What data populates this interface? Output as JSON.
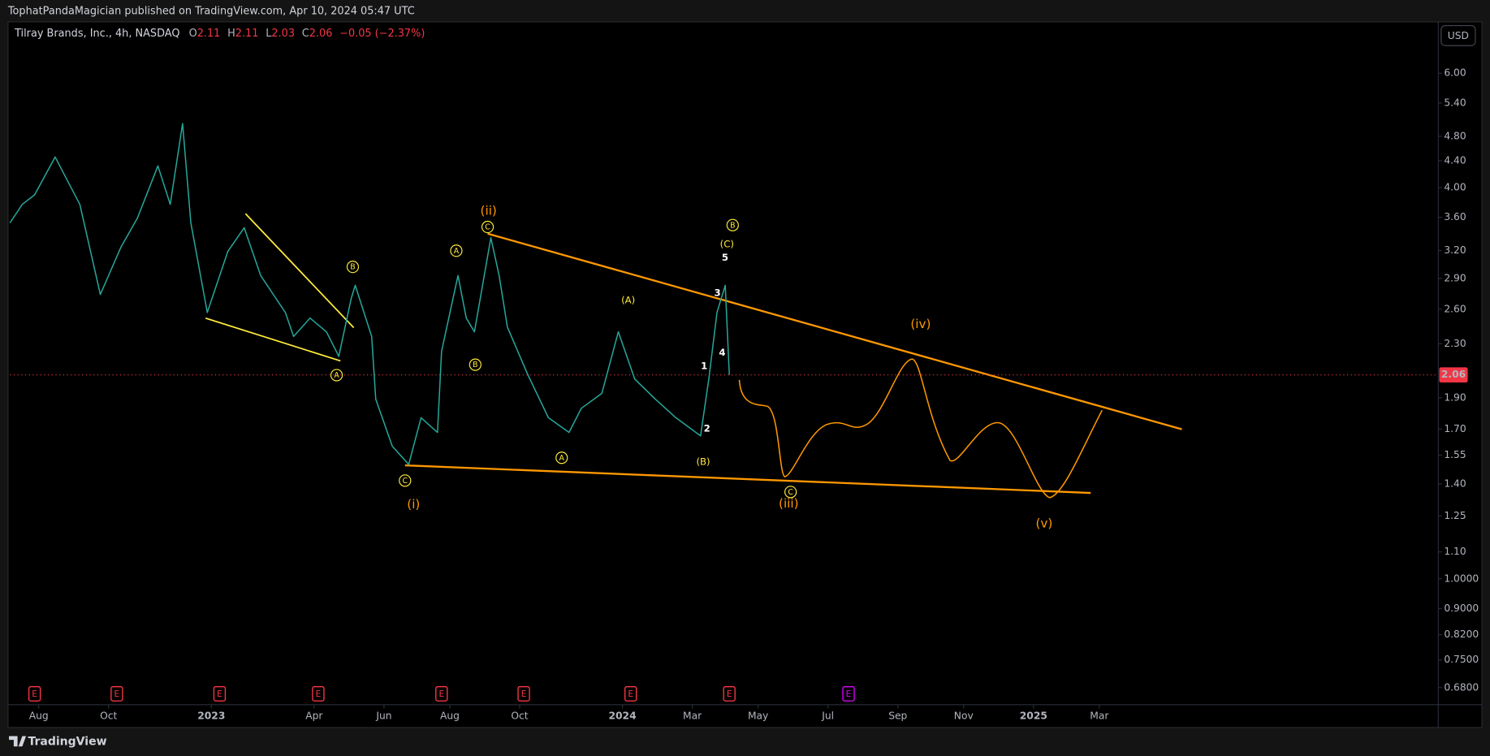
{
  "header": {
    "publisher": "TophatPandaMagician published on TradingView.com, Apr 10, 2024 05:47 UTC",
    "currency": "USD",
    "brand": "TradingView"
  },
  "chart_data": {
    "type": "line",
    "title": "Tilray Brands, Inc., 4h, NASDAQ",
    "ohlc": [
      {
        "label": "O",
        "value": 2.11
      },
      {
        "label": "H",
        "value": 2.11
      },
      {
        "label": "L",
        "value": 2.03
      },
      {
        "label": "C",
        "value": 2.06
      }
    ],
    "change": "−0.05 (−2.37%)",
    "x": [
      2022.51,
      2022.54,
      2022.57,
      2022.62,
      2022.65,
      2022.68,
      2022.73,
      2022.78,
      2022.82,
      2022.87,
      2022.9,
      2022.93,
      2022.95,
      2022.99,
      2023.04,
      2023.08,
      2023.12,
      2023.18,
      2023.2,
      2023.24,
      2023.28,
      2023.31,
      2023.34,
      2023.35,
      2023.39,
      2023.4,
      2023.44,
      2023.48,
      2023.51,
      2023.55,
      2023.56,
      2023.6,
      2023.62,
      2023.64,
      2023.68,
      2023.7,
      2023.72,
      2023.77,
      2023.82,
      2023.87,
      2023.9,
      2023.95,
      2023.99,
      2024.03,
      2024.08,
      2024.13,
      2024.19,
      2024.21,
      2024.23,
      2024.25,
      2024.26
    ],
    "values": [
      3.53,
      3.77,
      3.9,
      4.46,
      4.1,
      3.77,
      2.74,
      3.24,
      3.59,
      4.32,
      3.77,
      5.02,
      3.53,
      2.57,
      3.19,
      3.47,
      2.93,
      2.57,
      2.36,
      2.52,
      2.4,
      2.2,
      2.7,
      2.83,
      2.36,
      1.89,
      1.6,
      1.5,
      1.77,
      1.68,
      2.24,
      2.93,
      2.52,
      2.4,
      3.35,
      2.93,
      2.44,
      2.06,
      1.77,
      1.68,
      1.83,
      1.93,
      2.4,
      2.03,
      1.89,
      1.77,
      1.66,
      2.03,
      2.57,
      2.83,
      2.06
    ],
    "color": "#26a69a",
    "xlim": [
      2022.51,
      2025.98
    ],
    "xticks": [
      {
        "value": 2022.58,
        "label": "Aug"
      },
      {
        "value": 2022.75,
        "label": "Oct"
      },
      2023,
      {
        "value": 2023.25,
        "label": "Apr"
      },
      {
        "value": 2023.42,
        "label": "Jun"
      },
      {
        "value": 2023.58,
        "label": "Aug"
      },
      {
        "value": 2023.75,
        "label": "Oct"
      },
      2024,
      {
        "value": 2024.17,
        "label": "Mar"
      },
      {
        "value": 2024.33,
        "label": "May"
      },
      {
        "value": 2024.5,
        "label": "Jul"
      },
      {
        "value": 2024.67,
        "label": "Sep"
      },
      {
        "value": 2024.83,
        "label": "Nov"
      },
      2025,
      {
        "value": 2025.16,
        "label": "Mar"
      }
    ],
    "ylim": [
      0.64,
      7.2
    ],
    "log_scale": true,
    "yticks": [
      {
        "value": 6,
        "label": "6.00"
      },
      {
        "value": 5.4,
        "label": "5.40"
      },
      {
        "value": 4.8,
        "label": "4.80"
      },
      {
        "value": 4.4,
        "label": "4.40"
      },
      {
        "value": 4,
        "label": "4.00"
      },
      {
        "value": 3.6,
        "label": "3.60"
      },
      {
        "value": 3.2,
        "label": "3.20"
      },
      {
        "value": 2.9,
        "label": "2.90"
      },
      {
        "value": 2.6,
        "label": "2.60"
      },
      {
        "value": 2.3,
        "label": "2.30"
      },
      {
        "value": 1.9,
        "label": "1.90"
      },
      {
        "value": 1.7,
        "label": "1.70"
      },
      1.55,
      {
        "value": 1.4,
        "label": "1.40"
      },
      1.25,
      {
        "value": 1.1,
        "label": "1.10"
      },
      {
        "value": 1,
        "label": "1.0000"
      },
      {
        "value": 0.9,
        "label": "0.9000"
      },
      {
        "value": 0.82,
        "label": "0.8200"
      },
      {
        "value": 0.75,
        "label": "0.7500"
      },
      {
        "value": 0.68,
        "label": "0.6800"
      }
    ],
    "grid": false,
    "events": [
      {
        "label": "E",
        "x": 2022.57,
        "color": "#f23645"
      },
      {
        "label": "E",
        "x": 2022.77,
        "color": "#f23645"
      },
      {
        "label": "E",
        "x": 2023.02,
        "color": "#f23645"
      },
      {
        "label": "E",
        "x": 2023.26,
        "color": "#f23645"
      },
      {
        "label": "E",
        "x": 2023.56,
        "color": "#f23645"
      },
      {
        "label": "E",
        "x": 2023.76,
        "color": "#f23645"
      },
      {
        "label": "E",
        "x": 2024.02,
        "color": "#f23645"
      },
      {
        "label": "E",
        "x": 2024.26,
        "color": "#f23645"
      },
      {
        "label": "E",
        "x": 2024.55,
        "color": "#d500f9"
      }
    ],
    "annotations": [
      {
        "text": "(ii)",
        "color": "#ff9800",
        "circled": false
      },
      {
        "text": "C",
        "color": "#ffeb3b",
        "circled": true
      },
      {
        "text": "A",
        "color": "#ffeb3b",
        "circled": true
      },
      {
        "text": "B",
        "color": "#ffeb3b",
        "circled": true
      },
      {
        "text": "B",
        "color": "#ffeb3b",
        "circled": true
      },
      {
        "text": "A",
        "color": "#ffeb3b",
        "circled": true
      },
      {
        "text": "C",
        "color": "#ffeb3b",
        "circled": true
      },
      {
        "text": "(i)",
        "color": "#ff9800",
        "circled": false
      },
      {
        "text": "(A)",
        "color": "#ffeb3b",
        "circled": false
      },
      {
        "text": "A",
        "color": "#ffeb3b",
        "circled": true
      },
      {
        "text": "(B)",
        "color": "#ffeb3b",
        "circled": false
      },
      {
        "text": "B",
        "color": "#ffeb3b",
        "circled": true
      },
      {
        "text": "(C)",
        "color": "#ffeb3b",
        "circled": false
      },
      {
        "text": "5",
        "color": "#ffffff",
        "circled": false
      },
      {
        "text": "3",
        "color": "#ffffff",
        "circled": false
      },
      {
        "text": "4",
        "color": "#ffffff",
        "circled": false
      },
      {
        "text": "1",
        "color": "#ffffff",
        "circled": false
      },
      {
        "text": "2",
        "color": "#ffffff",
        "circled": false
      },
      {
        "text": "(iv)",
        "color": "#ff9800",
        "circled": false
      },
      {
        "text": "C",
        "color": "#ffeb3b",
        "circled": true
      },
      {
        "text": "(iii)",
        "color": "#ff9800",
        "circled": false
      },
      {
        "text": "(v)",
        "color": "#ff9800",
        "circled": false
      }
    ]
  }
}
